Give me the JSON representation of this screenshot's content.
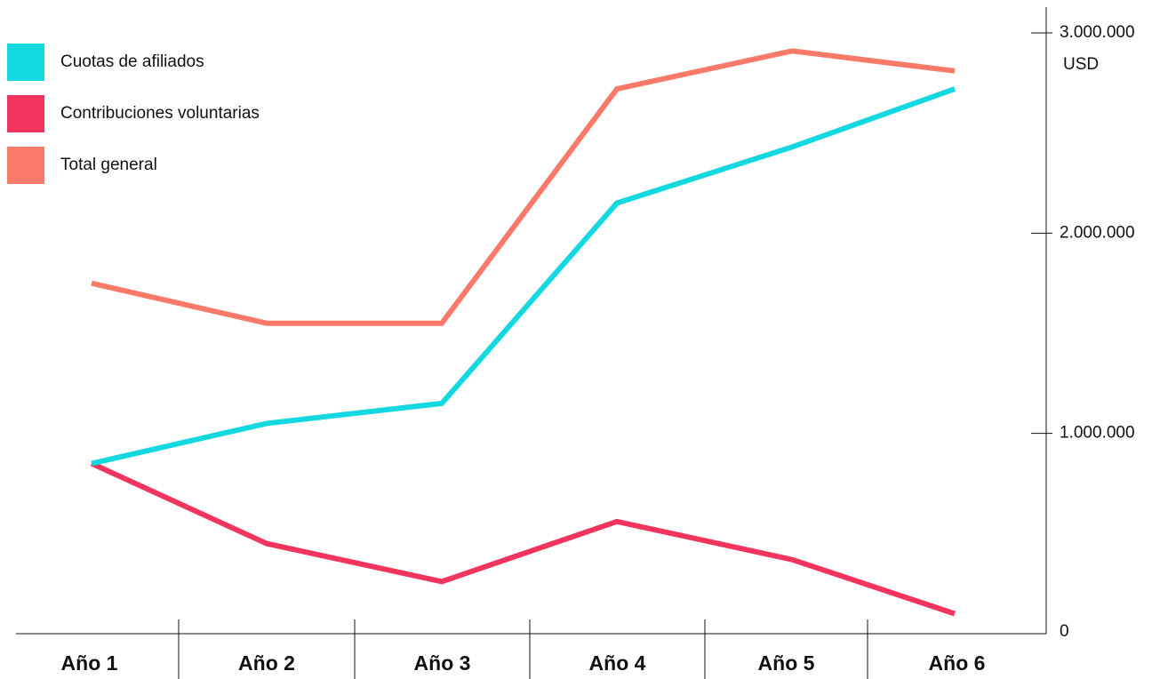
{
  "chart_data": {
    "type": "line",
    "categories": [
      "Año 1",
      "Año 2",
      "Año 3",
      "Año 4",
      "Año 5",
      "Año 6"
    ],
    "series": [
      {
        "name": "Cuotas de afiliados",
        "color": "#13d8e0",
        "values": [
          850000,
          1050000,
          1150000,
          2150000,
          2430000,
          2720000
        ]
      },
      {
        "name": "Contribuciones voluntarias",
        "color": "#f2355e",
        "values": [
          850000,
          450000,
          260000,
          560000,
          370000,
          100000
        ]
      },
      {
        "name": "Total general",
        "color": "#fa7a69",
        "values": [
          1750000,
          1550000,
          1550000,
          2720000,
          2910000,
          2810000
        ]
      }
    ],
    "y_ticks": [
      {
        "value": 0,
        "label": "0"
      },
      {
        "value": 1000000,
        "label": "1.000.000"
      },
      {
        "value": 2000000,
        "label": "2.000.000"
      },
      {
        "value": 3000000,
        "label": "3.000.000"
      }
    ],
    "y_unit": "USD",
    "ylim": [
      0,
      3000000
    ],
    "y_axis_position": "right",
    "legend_position": "top-left",
    "grid": false
  }
}
